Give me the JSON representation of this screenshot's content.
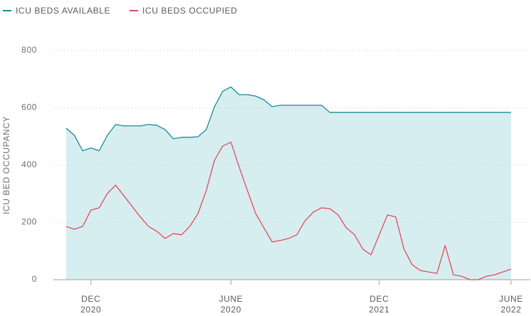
{
  "chart_data": {
    "type": "area-line",
    "y_label": "ICU BED OCCUPANCY",
    "categories": [
      null,
      null,
      null,
      "DEC 2020",
      null,
      null,
      null,
      null,
      null,
      null,
      null,
      null,
      null,
      null,
      null,
      null,
      null,
      null,
      null,
      null,
      "JUNE 2020",
      null,
      null,
      null,
      null,
      null,
      null,
      null,
      null,
      null,
      null,
      null,
      null,
      null,
      null,
      null,
      null,
      null,
      "DEC 2021",
      null,
      null,
      null,
      null,
      null,
      null,
      null,
      null,
      null,
      null,
      null,
      null,
      null,
      null,
      null,
      "JUNE 2022"
    ],
    "series": [
      {
        "name": "ICU BEDS AVAILABLE",
        "color": "#1a8a96",
        "fill": "#d6eef0",
        "values": [
          529,
          504,
          450,
          460,
          450,
          504,
          542,
          537,
          537,
          537,
          542,
          539,
          524,
          492,
          497,
          497,
          499,
          524,
          604,
          658,
          673,
          646,
          646,
          641,
          628,
          604,
          609,
          609,
          609,
          609,
          609,
          609,
          584,
          584,
          584,
          584,
          584,
          584,
          584,
          584,
          584,
          584,
          584,
          584,
          584,
          584,
          584,
          584,
          584,
          584,
          584,
          584,
          584,
          584,
          584
        ]
      },
      {
        "name": "ICU BEDS OCCUPIED",
        "color": "#e8495c",
        "values": [
          186,
          176,
          186,
          243,
          251,
          301,
          330,
          293,
          256,
          219,
          186,
          169,
          144,
          161,
          157,
          186,
          231,
          311,
          417,
          467,
          480,
          393,
          311,
          231,
          181,
          132,
          137,
          144,
          157,
          206,
          236,
          251,
          248,
          226,
          181,
          157,
          107,
          87,
          157,
          226,
          219,
          107,
          52,
          32,
          27,
          22,
          119,
          17,
          12,
          0,
          0,
          12,
          17,
          27,
          37
        ]
      }
    ],
    "ylim": [
      0,
      800
    ],
    "yticks": [
      0,
      200,
      400,
      600,
      800
    ],
    "grid": true
  }
}
